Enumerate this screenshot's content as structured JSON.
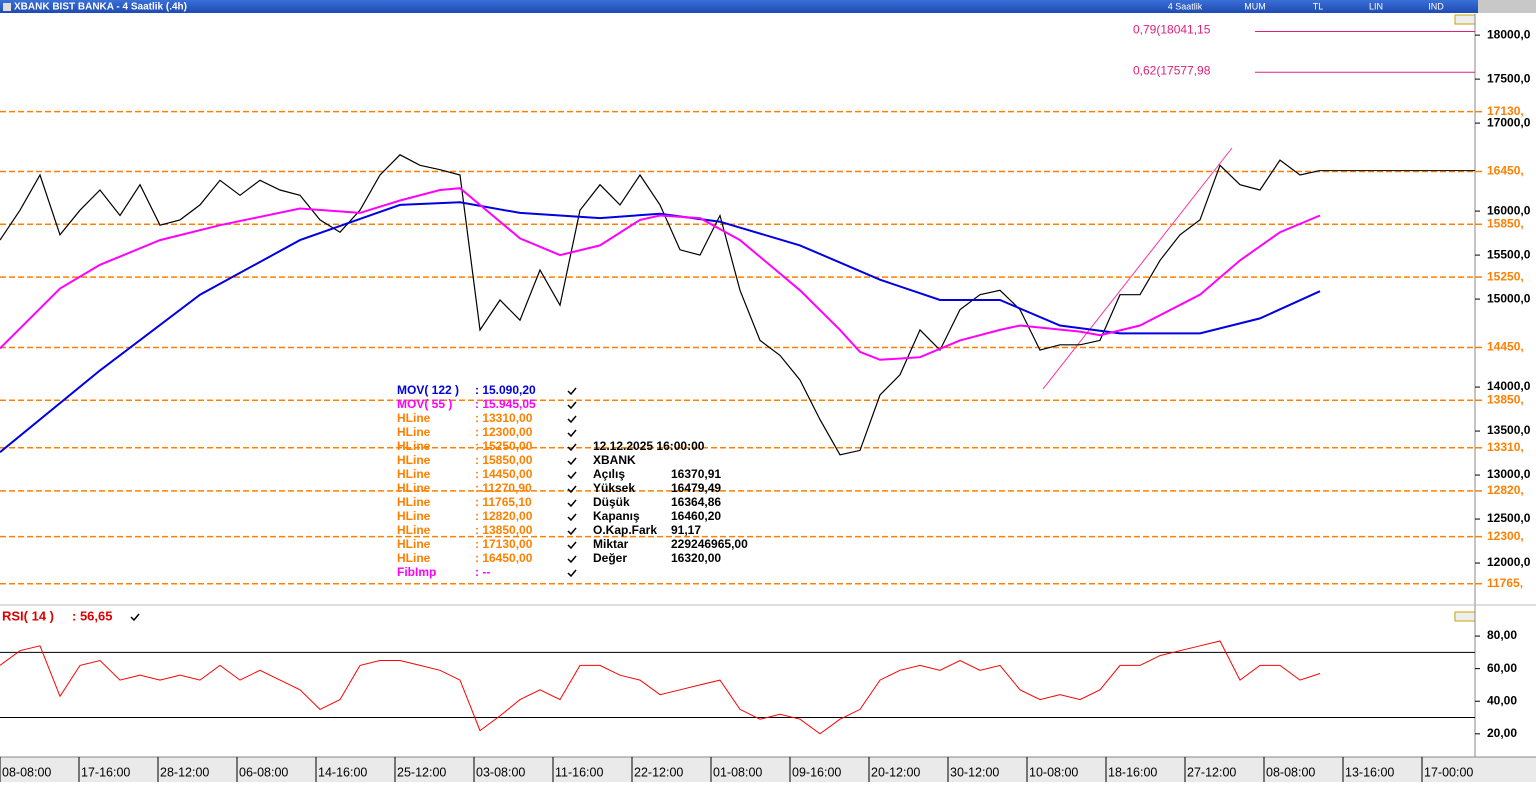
{
  "window": {
    "title": "XBANK BIST BANKA - 4 Saatlik (.4h)",
    "toolbar": [
      "4 Saatlik",
      "MUM",
      "TL",
      "LIN",
      "IND"
    ]
  },
  "chart_data": {
    "type": "line",
    "xlim": [
      0,
      73.75
    ],
    "xticks": [
      {
        "value": 0,
        "label": "08-08:00"
      },
      {
        "value": 3.95,
        "label": "17-16:00"
      },
      {
        "value": 7.9,
        "label": "28-12:00"
      },
      {
        "value": 11.85,
        "label": "06-08:00"
      },
      {
        "value": 15.8,
        "label": "14-16:00"
      },
      {
        "value": 19.75,
        "label": "25-12:00"
      },
      {
        "value": 23.7,
        "label": "03-08:00"
      },
      {
        "value": 27.65,
        "label": "11-16:00"
      },
      {
        "value": 31.6,
        "label": "22-12:00"
      },
      {
        "value": 35.55,
        "label": "01-08:00"
      },
      {
        "value": 39.5,
        "label": "09-16:00"
      },
      {
        "value": 43.45,
        "label": "20-12:00"
      },
      {
        "value": 47.4,
        "label": "30-12:00"
      },
      {
        "value": 51.35,
        "label": "10-08:00"
      },
      {
        "value": 55.3,
        "label": "18-16:00"
      },
      {
        "value": 59.25,
        "label": "27-12:00"
      },
      {
        "value": 63.2,
        "label": "08-08:00"
      },
      {
        "value": 67.15,
        "label": "13-16:00"
      },
      {
        "value": 71.1,
        "label": "17-00:00"
      }
    ],
    "ylim": [
      11580,
      18240
    ],
    "yticks": [
      {
        "value": 18000,
        "label": "18000,0"
      },
      {
        "value": 17500,
        "label": "17500,0"
      },
      {
        "value": 17000,
        "label": "17000,0"
      },
      {
        "value": 16000,
        "label": "16000,0"
      },
      {
        "value": 15500,
        "label": "15500,0"
      },
      {
        "value": 15000,
        "label": "15000,0"
      },
      {
        "value": 14000,
        "label": "14000,0"
      },
      {
        "value": 13500,
        "label": "13500,0"
      },
      {
        "value": 13000,
        "label": "13000,0"
      },
      {
        "value": 12500,
        "label": "12500,0"
      },
      {
        "value": 12000,
        "label": "12000,0"
      }
    ],
    "series": [
      {
        "color": "#000000",
        "values": [
          15670,
          16010,
          16410,
          15730,
          16010,
          16240,
          15950,
          16300,
          15840,
          15900,
          16070,
          16350,
          16180,
          16350,
          16240,
          16180,
          15900,
          15760,
          16010,
          16410,
          16640,
          16520,
          16470,
          16410,
          14650,
          14990,
          14760,
          15330,
          14930,
          16010,
          16300,
          16070,
          16410,
          16070,
          15560,
          15500,
          15950,
          15100,
          14530,
          14360,
          14080,
          13630,
          13230,
          13280,
          13910,
          14140,
          14650,
          14420,
          14880,
          15050,
          15100,
          14880,
          14420,
          14480,
          14480,
          14530,
          15050,
          15050,
          15440,
          15730,
          15900,
          16520,
          16300,
          16240,
          16580,
          16410,
          16460
        ]
      },
      {
        "color": "#0000e0",
        "x": [
          0,
          5,
          10,
          15,
          20,
          23,
          26,
          30,
          33,
          36,
          40,
          44,
          47,
          50,
          53,
          56,
          60,
          63,
          66
        ],
        "values": [
          13260,
          14190,
          15050,
          15670,
          16070,
          16100,
          15980,
          15920,
          15970,
          15880,
          15610,
          15220,
          14990,
          14990,
          14700,
          14610,
          14610,
          14780,
          15090
        ]
      },
      {
        "color": "#ff00ff",
        "x": [
          0,
          3,
          5,
          8,
          11,
          15,
          18,
          20,
          22,
          23,
          24,
          26,
          28,
          30,
          32,
          33,
          35,
          37,
          40,
          42,
          43,
          44,
          46,
          48,
          50,
          51,
          54,
          55,
          57,
          60,
          62,
          64,
          66
        ],
        "values": [
          14440,
          15120,
          15390,
          15670,
          15840,
          16030,
          15980,
          16120,
          16240,
          16260,
          16070,
          15690,
          15500,
          15610,
          15900,
          15950,
          15920,
          15670,
          15100,
          14650,
          14400,
          14310,
          14340,
          14530,
          14650,
          14700,
          14630,
          14590,
          14700,
          15050,
          15440,
          15760,
          15950
        ]
      }
    ],
    "hlines": [
      {
        "value": 17130,
        "label": "17130,"
      },
      {
        "value": 16450,
        "label": "16450,"
      },
      {
        "value": 15850,
        "label": "15850,"
      },
      {
        "value": 15250,
        "label": "15250,"
      },
      {
        "value": 14450,
        "label": "14450,"
      },
      {
        "value": 13850,
        "label": "13850,"
      },
      {
        "value": 13310,
        "label": "13310,"
      },
      {
        "value": 12820,
        "label": "12820,"
      },
      {
        "value": 12300,
        "label": "12300,"
      },
      {
        "value": 11765,
        "label": "11765,"
      }
    ],
    "hline_color": "#ff8000",
    "fib": [
      {
        "value": 18041.15,
        "label": "0,79(18041,15"
      },
      {
        "value": 17577.98,
        "label": "0,62(17577,98"
      }
    ],
    "fib_color": "#e0207a"
  },
  "legend": [
    {
      "name": "MOV( 122 )",
      "value": ": 15.090,20",
      "color": "#0000e0"
    },
    {
      "name": "MOV( 55 )",
      "value": ": 15.945,05",
      "color": "#ff00ff"
    },
    {
      "name": "HLine",
      "value": ": 13310,00",
      "color": "#ff8000"
    },
    {
      "name": "HLine",
      "value": ": 12300,00",
      "color": "#ff8000"
    },
    {
      "name": "HLine",
      "value": ": 15250,00",
      "color": "#ff8000"
    },
    {
      "name": "HLine",
      "value": ": 15850,00",
      "color": "#ff8000"
    },
    {
      "name": "HLine",
      "value": ": 14450,00",
      "color": "#ff8000"
    },
    {
      "name": "HLine",
      "value": ": 11270,90",
      "color": "#ff8000"
    },
    {
      "name": "HLine",
      "value": ": 11765,10",
      "color": "#ff8000"
    },
    {
      "name": "HLine",
      "value": ": 12820,00",
      "color": "#ff8000"
    },
    {
      "name": "HLine",
      "value": ": 13850,00",
      "color": "#ff8000"
    },
    {
      "name": "HLine",
      "value": ": 17130,00",
      "color": "#ff8000"
    },
    {
      "name": "HLine",
      "value": ": 16450,00",
      "color": "#ff8000"
    },
    {
      "name": "FibImp",
      "value": ": --",
      "color": "#ff00ff"
    }
  ],
  "info": {
    "date": "12.12.2025  16:00:00",
    "symbol": "XBANK",
    "rows": [
      [
        "Açılış",
        "16370,91"
      ],
      [
        "Yüksek",
        "16479,49"
      ],
      [
        "Düşük",
        "16364,86"
      ],
      [
        "Kapanış",
        "16460,20"
      ],
      [
        "O.Kap.Fark",
        "91,17"
      ],
      [
        "Miktar",
        "229246965,00"
      ],
      [
        "Değer",
        "16320,00"
      ]
    ]
  },
  "rsi": {
    "type": "line",
    "name": "RSI( 14 )",
    "value": ": 56,65",
    "color": "#ff0000",
    "ylim": [
      7,
      96
    ],
    "yticks": [
      {
        "value": 20,
        "label": "20,00"
      },
      {
        "value": 40,
        "label": "40,00"
      },
      {
        "value": 60,
        "label": "60,00"
      },
      {
        "value": 80,
        "label": "80,00"
      }
    ],
    "levels": [
      30,
      70
    ],
    "values": [
      62,
      71,
      74,
      43,
      62,
      65,
      53,
      56,
      53,
      56,
      53,
      62,
      53,
      59,
      53,
      47,
      35,
      41,
      62,
      65,
      65,
      62,
      59,
      53,
      22,
      31,
      41,
      47,
      41,
      62,
      62,
      56,
      53,
      44,
      47,
      50,
      53,
      35,
      29,
      32,
      29,
      20,
      29,
      35,
      53,
      59,
      62,
      59,
      65,
      59,
      62,
      47,
      41,
      44,
      41,
      47,
      62,
      62,
      68,
      71,
      74,
      77,
      53,
      62,
      62,
      53,
      57
    ]
  }
}
